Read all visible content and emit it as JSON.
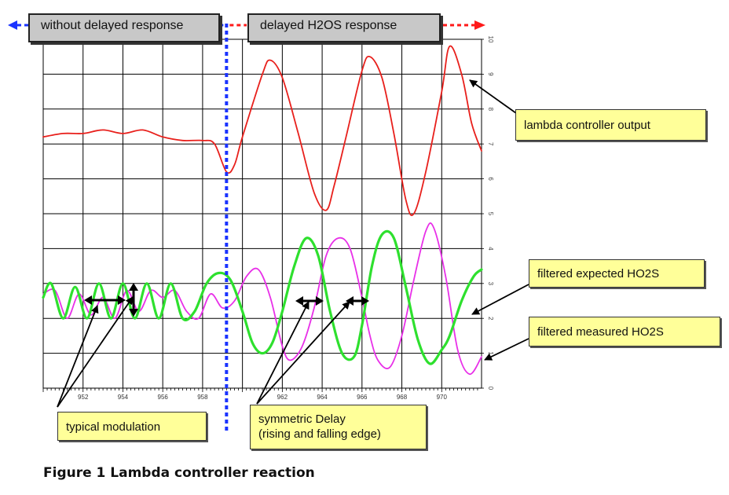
{
  "regions": {
    "left_label": "without delayed response",
    "right_label": "delayed H2OS response",
    "left_arrow_color": "#1a33ff",
    "right_arrow_color": "#ff1a1a"
  },
  "callouts": {
    "lambda": "lambda controller output",
    "expected": "filtered expected HO2S",
    "measured": "filtered measured HO2S",
    "modulation": "typical modulation",
    "delay_line1": "symmetric Delay",
    "delay_line2": "(rising and falling edge)"
  },
  "caption": "Figure 1 Lambda controller reaction",
  "chart_data": {
    "type": "line",
    "xlim": [
      950,
      972
    ],
    "ylim": [
      0,
      10
    ],
    "grid": true,
    "x_ticks": [
      "952",
      "954",
      "956",
      "958",
      "962",
      "964",
      "966",
      "968",
      "970"
    ],
    "y_ticks": [
      "0",
      "1",
      "2",
      "3",
      "4",
      "5",
      "6",
      "7",
      "8",
      "9",
      "10"
    ],
    "divider_x": 959.2,
    "series": [
      {
        "name": "lambda controller output",
        "color": "#e8201c",
        "x": [
          950,
          951,
          952,
          953,
          954,
          955,
          956,
          957,
          958,
          958.6,
          959.2,
          959.6,
          960,
          961,
          961.4,
          962,
          962.8,
          963.6,
          964.2,
          964.6,
          965.2,
          966,
          966.4,
          967,
          967.6,
          968.2,
          968.6,
          969.2,
          970,
          970.4,
          971,
          971.5,
          972
        ],
        "y": [
          7.2,
          7.3,
          7.3,
          7.4,
          7.3,
          7.4,
          7.2,
          7.1,
          7.1,
          7.0,
          6.2,
          6.4,
          7.2,
          9.0,
          9.4,
          8.9,
          7.3,
          5.6,
          5.1,
          5.8,
          7.2,
          9.1,
          9.5,
          8.9,
          7.3,
          5.4,
          5.0,
          6.2,
          8.5,
          9.8,
          9.0,
          7.6,
          6.8
        ]
      },
      {
        "name": "filtered expected HO2S",
        "color": "#2ee02e",
        "x": [
          950,
          950.4,
          951,
          951.6,
          952.2,
          952.8,
          953.4,
          954,
          954.6,
          955.2,
          955.8,
          956.4,
          957,
          957.6,
          958.2,
          958.8,
          959.4,
          960,
          960.5,
          961,
          961.5,
          962,
          962.6,
          963.2,
          963.8,
          964.4,
          965,
          965.6,
          966,
          966.5,
          967,
          967.6,
          968.2,
          968.8,
          969.4,
          970,
          970.4,
          971,
          971.6,
          972
        ],
        "y": [
          2.6,
          3.0,
          2.0,
          2.9,
          2.0,
          3.0,
          2.0,
          3.0,
          2.0,
          3.0,
          2.0,
          3.0,
          2.0,
          2.2,
          3.0,
          3.3,
          3.1,
          2.2,
          1.3,
          1.0,
          1.3,
          2.2,
          3.5,
          4.3,
          3.8,
          2.2,
          1.0,
          0.9,
          1.8,
          3.5,
          4.4,
          4.3,
          2.9,
          1.4,
          0.7,
          1.1,
          1.5,
          2.5,
          3.2,
          3.4
        ]
      },
      {
        "name": "filtered measured HO2S",
        "color": "#e830e8",
        "x": [
          950,
          950.6,
          951.2,
          951.8,
          952.4,
          953,
          953.6,
          954.2,
          954.8,
          955.4,
          956,
          956.6,
          957.2,
          957.8,
          958.4,
          959,
          959.6,
          960.2,
          960.8,
          961.4,
          962,
          962.4,
          963,
          963.6,
          964.2,
          964.8,
          965.4,
          966,
          966.4,
          966.8,
          967.4,
          968,
          968.6,
          969.2,
          969.6,
          970.2,
          970.8,
          971.4,
          972
        ],
        "y": [
          2.7,
          2.8,
          2.0,
          2.7,
          2.1,
          2.6,
          2.0,
          2.8,
          2.2,
          2.8,
          2.6,
          2.8,
          2.2,
          2.0,
          2.7,
          2.3,
          2.5,
          3.2,
          3.4,
          2.6,
          1.2,
          0.8,
          1.2,
          2.3,
          3.8,
          4.3,
          4.0,
          2.6,
          1.5,
          0.8,
          0.6,
          1.5,
          3.1,
          4.5,
          4.6,
          3.2,
          1.1,
          0.4,
          0.9
        ]
      }
    ]
  }
}
